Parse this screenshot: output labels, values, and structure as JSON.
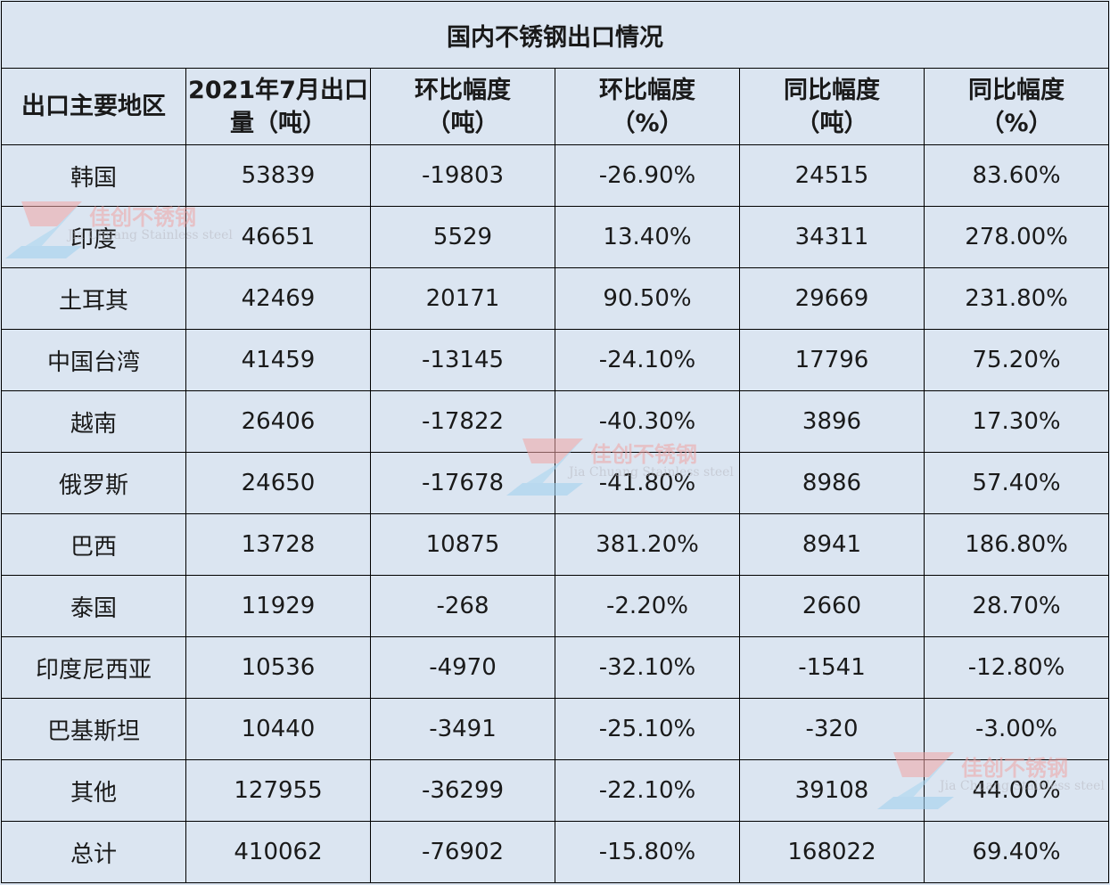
{
  "table": {
    "title": "国内不锈钢出口情况",
    "headers": [
      [
        "出口主要地区"
      ],
      [
        "2021年7月出口",
        "量（吨）"
      ],
      [
        "环比幅度",
        "（吨）"
      ],
      [
        "环比幅度",
        "（%）"
      ],
      [
        "同比幅度",
        "（吨）"
      ],
      [
        "同比幅度",
        "（%）"
      ]
    ],
    "rows": [
      [
        "韩国",
        "53839",
        "-19803",
        "-26.90%",
        "24515",
        "83.60%"
      ],
      [
        "印度",
        "46651",
        "5529",
        "13.40%",
        "34311",
        "278.00%"
      ],
      [
        "土耳其",
        "42469",
        "20171",
        "90.50%",
        "29669",
        "231.80%"
      ],
      [
        "中国台湾",
        "41459",
        "-13145",
        "-24.10%",
        "17796",
        "75.20%"
      ],
      [
        "越南",
        "26406",
        "-17822",
        "-40.30%",
        "3896",
        "17.30%"
      ],
      [
        "俄罗斯",
        "24650",
        "-17678",
        "-41.80%",
        "8986",
        "57.40%"
      ],
      [
        "巴西",
        "13728",
        "10875",
        "381.20%",
        "8941",
        "186.80%"
      ],
      [
        "泰国",
        "11929",
        "-268",
        "-2.20%",
        "2660",
        "28.70%"
      ],
      [
        "印度尼西亚",
        "10536",
        "-4970",
        "-32.10%",
        "-1541",
        "-12.80%"
      ],
      [
        "巴基斯坦",
        "10440",
        "-3491",
        "-25.10%",
        "-320",
        "-3.00%"
      ],
      [
        "其他",
        "127955",
        "-36299",
        "-22.10%",
        "39108",
        "44.00%"
      ],
      [
        "总计",
        "410062",
        "-76902",
        "-15.80%",
        "168022",
        "69.40%"
      ]
    ]
  },
  "watermark": {
    "text": "佳创不锈钢",
    "subtext": "Jia Chuang Stainless steel"
  },
  "colors": {
    "background": "#dbe5f1",
    "border": "#000000",
    "watermark_red": "#f0a4a4",
    "watermark_blue": "#9fd0ee"
  }
}
